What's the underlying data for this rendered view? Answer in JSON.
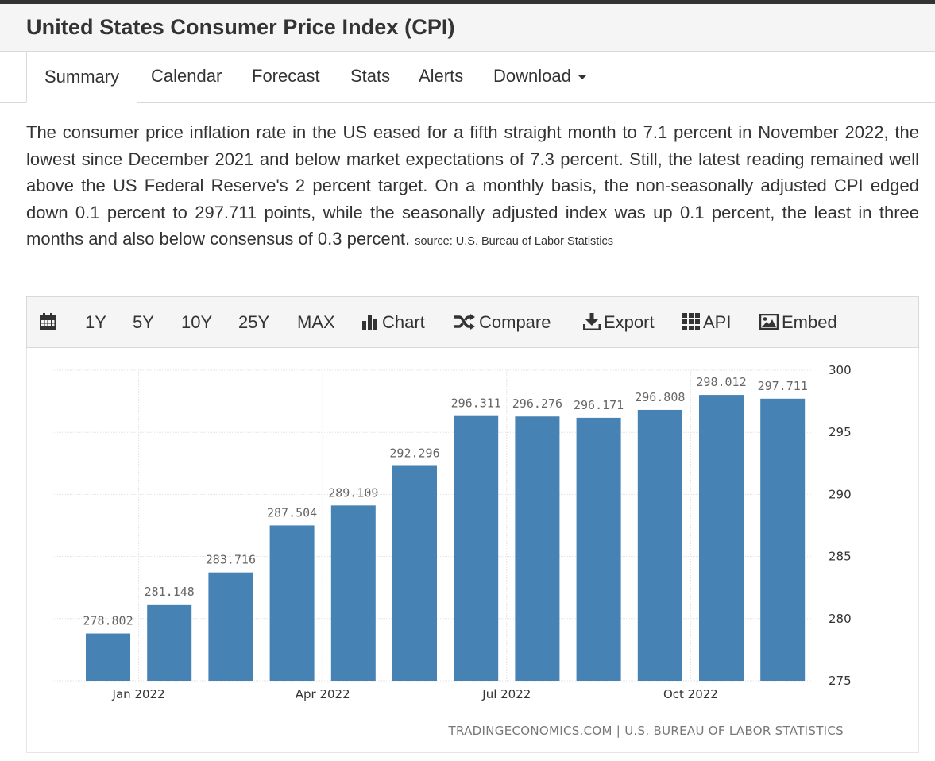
{
  "page": {
    "title": "United States Consumer Price Index (CPI)"
  },
  "tabs": [
    {
      "label": "Summary",
      "active": true
    },
    {
      "label": "Calendar"
    },
    {
      "label": "Forecast"
    },
    {
      "label": "Stats"
    },
    {
      "label": "Alerts"
    },
    {
      "label": "Download",
      "has_dropdown": true
    }
  ],
  "description": {
    "text": "The consumer price inflation rate in the US eased for a fifth straight month to 7.1 percent in November 2022, the lowest since December 2021 and below market expectations of 7.3 percent. Still, the latest reading remained well above the US Federal Reserve's 2 percent target. On a monthly basis, the non-seasonally adjusted CPI edged down 0.1 percent to 297.711 points, while the seasonally adjusted index was up 0.1 percent, the least in three months and also below consensus of 0.3 percent.",
    "source": "source: U.S. Bureau of Labor Statistics"
  },
  "toolbar": {
    "calendar_icon": "calendar-icon",
    "ranges": [
      "1Y",
      "5Y",
      "10Y",
      "25Y",
      "MAX"
    ],
    "chart_label": "Chart",
    "compare_label": "Compare",
    "export_label": "Export",
    "api_label": "API",
    "embed_label": "Embed"
  },
  "colors": {
    "bar": "#4682b4",
    "title_bar_bg": "#f5f5f5",
    "top_border": "#333333"
  },
  "chart_data": {
    "type": "bar",
    "categories": [
      "Dec 2021",
      "Jan 2022",
      "Feb 2022",
      "Mar 2022",
      "Apr 2022",
      "May 2022",
      "Jun 2022",
      "Jul 2022",
      "Aug 2022",
      "Sep 2022",
      "Oct 2022",
      "Nov 2022"
    ],
    "values": [
      278.802,
      281.148,
      283.716,
      287.504,
      289.109,
      292.296,
      296.311,
      296.276,
      296.171,
      296.808,
      298.012,
      297.711
    ],
    "data_labels": [
      "278.802",
      "281.148",
      "283.716",
      "287.504",
      "289.109",
      "292.296",
      "296.311",
      "296.276",
      "296.171",
      "296.808",
      "298.012",
      "297.711"
    ],
    "x_tick_labels": [
      {
        "index": 1,
        "label": "Jan 2022"
      },
      {
        "index": 4,
        "label": "Apr 2022"
      },
      {
        "index": 7,
        "label": "Jul 2022"
      },
      {
        "index": 10,
        "label": "Oct 2022"
      }
    ],
    "y_ticks": [
      "275",
      "280",
      "285",
      "290",
      "295",
      "300"
    ],
    "ylim": [
      275,
      300
    ],
    "y_axis_side": "right",
    "grid": true,
    "credit": "TRADINGECONOMICS.COM | U.S. BUREAU OF LABOR STATISTICS"
  }
}
